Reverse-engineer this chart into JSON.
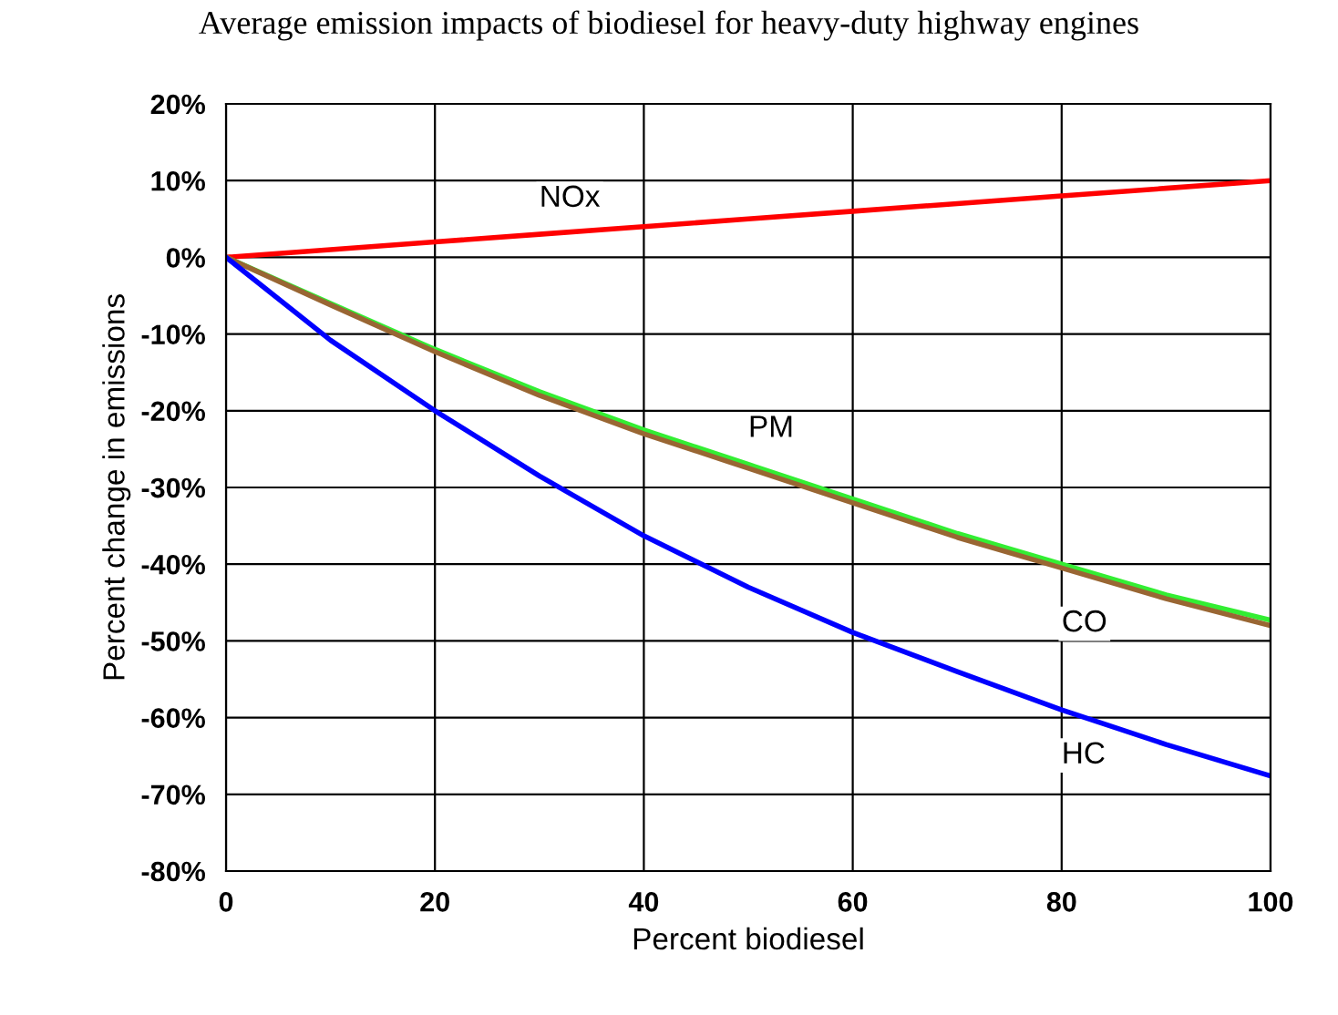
{
  "chart_data": {
    "type": "line",
    "title": "Average emission impacts of biodiesel for heavy-duty highway engines",
    "xlabel": "Percent biodiesel",
    "ylabel": "Percent change in emissions",
    "x": [
      0,
      10,
      20,
      30,
      40,
      50,
      60,
      70,
      80,
      90,
      100
    ],
    "series": [
      {
        "name": "NOx",
        "color": "#ff0000",
        "values": [
          0,
          1,
          2,
          3,
          4,
          5,
          6,
          7,
          8,
          9,
          10
        ]
      },
      {
        "name": "PM",
        "color": "#33ee33",
        "values": [
          0,
          -6,
          -12,
          -17.5,
          -22.5,
          -27,
          -31.5,
          -36,
          -40,
          -44,
          -47.3
        ]
      },
      {
        "name": "CO",
        "color": "#996633",
        "values": [
          0,
          -6.2,
          -12.3,
          -18,
          -23,
          -27.5,
          -32,
          -36.5,
          -40.5,
          -44.5,
          -48
        ]
      },
      {
        "name": "HC",
        "color": "#0000ff",
        "values": [
          0,
          -10.8,
          -20,
          -28.5,
          -36.3,
          -43,
          -48.9,
          -54,
          -59,
          -63.5,
          -67.6
        ]
      }
    ],
    "xlim": [
      0,
      100
    ],
    "xticks": [
      0,
      20,
      40,
      60,
      80,
      100
    ],
    "ylim": [
      -80,
      20
    ],
    "yticks": [
      {
        "value": -80,
        "label": "-80%"
      },
      {
        "value": -70,
        "label": "-70%"
      },
      {
        "value": -60,
        "label": "-60%"
      },
      {
        "value": -50,
        "label": "-50%"
      },
      {
        "value": -40,
        "label": "-40%"
      },
      {
        "value": -30,
        "label": "-30%"
      },
      {
        "value": -20,
        "label": "-20%"
      },
      {
        "value": -10,
        "label": "-10%"
      },
      {
        "value": 0,
        "label": "0%"
      },
      {
        "value": 10,
        "label": "10%"
      },
      {
        "value": 20,
        "label": "20%"
      }
    ],
    "grid": true,
    "legend": false,
    "marker": "none",
    "line_style": "solid"
  }
}
